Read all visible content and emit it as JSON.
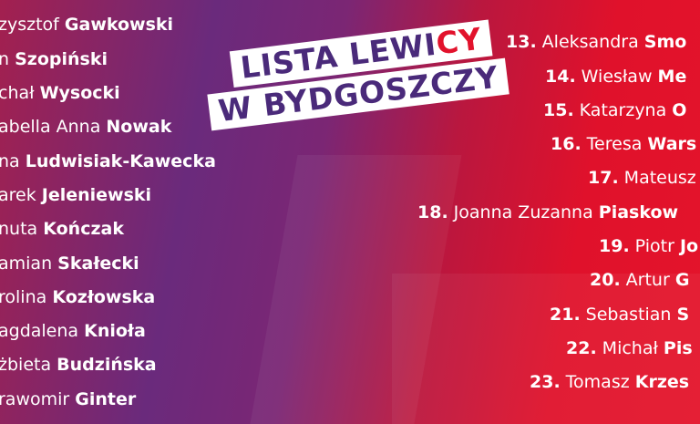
{
  "title": {
    "line1_main": "LISTA LEWI",
    "line1_accent": "CY",
    "line2": "W BYDGOSZCZY"
  },
  "left_list": [
    {
      "first": "zysztof",
      "last": "Gawkowski"
    },
    {
      "first": "n",
      "last": "Szopiński"
    },
    {
      "first": "chał",
      "last": "Wysocki"
    },
    {
      "first": "abella Anna",
      "last": "Nowak"
    },
    {
      "first": "na",
      "last": "Ludwisiak-Kawecka"
    },
    {
      "first": "arek",
      "last": "Jeleniewski"
    },
    {
      "first": "nuta",
      "last": "Kończak"
    },
    {
      "first": "amian",
      "last": "Skałecki"
    },
    {
      "first": "rolina",
      "last": "Kozłowska"
    },
    {
      "first": "agdalena",
      "last": "Knioła"
    },
    {
      "first": "żbieta",
      "last": "Budzińska"
    },
    {
      "first": "rawomir",
      "last": "Ginter"
    }
  ],
  "right_list": [
    {
      "number": "13.",
      "first": "Aleksandra",
      "last": "Smo"
    },
    {
      "number": "14.",
      "first": "Wiesław",
      "last": "Me"
    },
    {
      "number": "15.",
      "first": "Katarzyna",
      "last": "O"
    },
    {
      "number": "16.",
      "first": "Teresa",
      "last": "Wars"
    },
    {
      "number": "17.",
      "first": "Mateusz"
    },
    {
      "number": "18.",
      "first": "Joanna Zuzanna",
      "last": "Piaskow"
    },
    {
      "number": "19.",
      "first": "Piotr",
      "last": "Jo"
    },
    {
      "number": "20.",
      "first": "Artur",
      "last": "G"
    },
    {
      "number": "21.",
      "first": "Sebastian",
      "last": "S"
    },
    {
      "number": "22.",
      "first": "Michał",
      "last": "Pis"
    },
    {
      "number": "23.",
      "first": "Tomasz",
      "last": "Krzes"
    }
  ]
}
